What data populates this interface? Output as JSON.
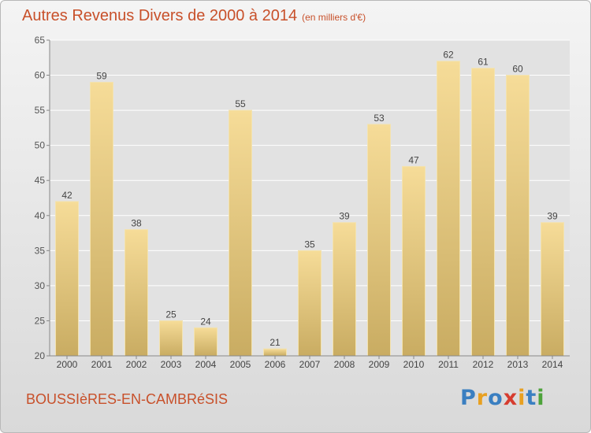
{
  "header": {
    "title": "Autres Revenus Divers de 2000 à 2014",
    "unit": "(en milliers d'€)"
  },
  "footer": {
    "town": "BOUSSIèRES-EN-CAMBRéSIS",
    "logo_letters": [
      "P",
      "r",
      "o",
      "x",
      "i",
      "t",
      "i"
    ],
    "logo_colors": [
      "#3a7fc1",
      "#e8a020",
      "#3a7fc1",
      "#d63c2f",
      "#e8a020",
      "#3a7fc1",
      "#4da33a"
    ]
  },
  "colors": {
    "title": "#c8502a",
    "bar_light": "#f6dc98",
    "bar_dark": "#c9ac62",
    "grid": "#ffffff"
  },
  "chart_data": {
    "type": "bar",
    "title": "Autres Revenus Divers de 2000 à 2014",
    "subtitle": "(en milliers d'€)",
    "xlabel": "",
    "ylabel": "",
    "categories": [
      "2000",
      "2001",
      "2002",
      "2003",
      "2004",
      "2005",
      "2006",
      "2007",
      "2008",
      "2009",
      "2010",
      "2011",
      "2012",
      "2013",
      "2014"
    ],
    "values": [
      42,
      59,
      38,
      25,
      24,
      55,
      21,
      35,
      39,
      53,
      47,
      62,
      61,
      60,
      39
    ],
    "ylim": [
      20,
      65
    ],
    "yticks": [
      20,
      25,
      30,
      35,
      40,
      45,
      50,
      55,
      60,
      65
    ],
    "grid": true,
    "data_labels": true
  }
}
